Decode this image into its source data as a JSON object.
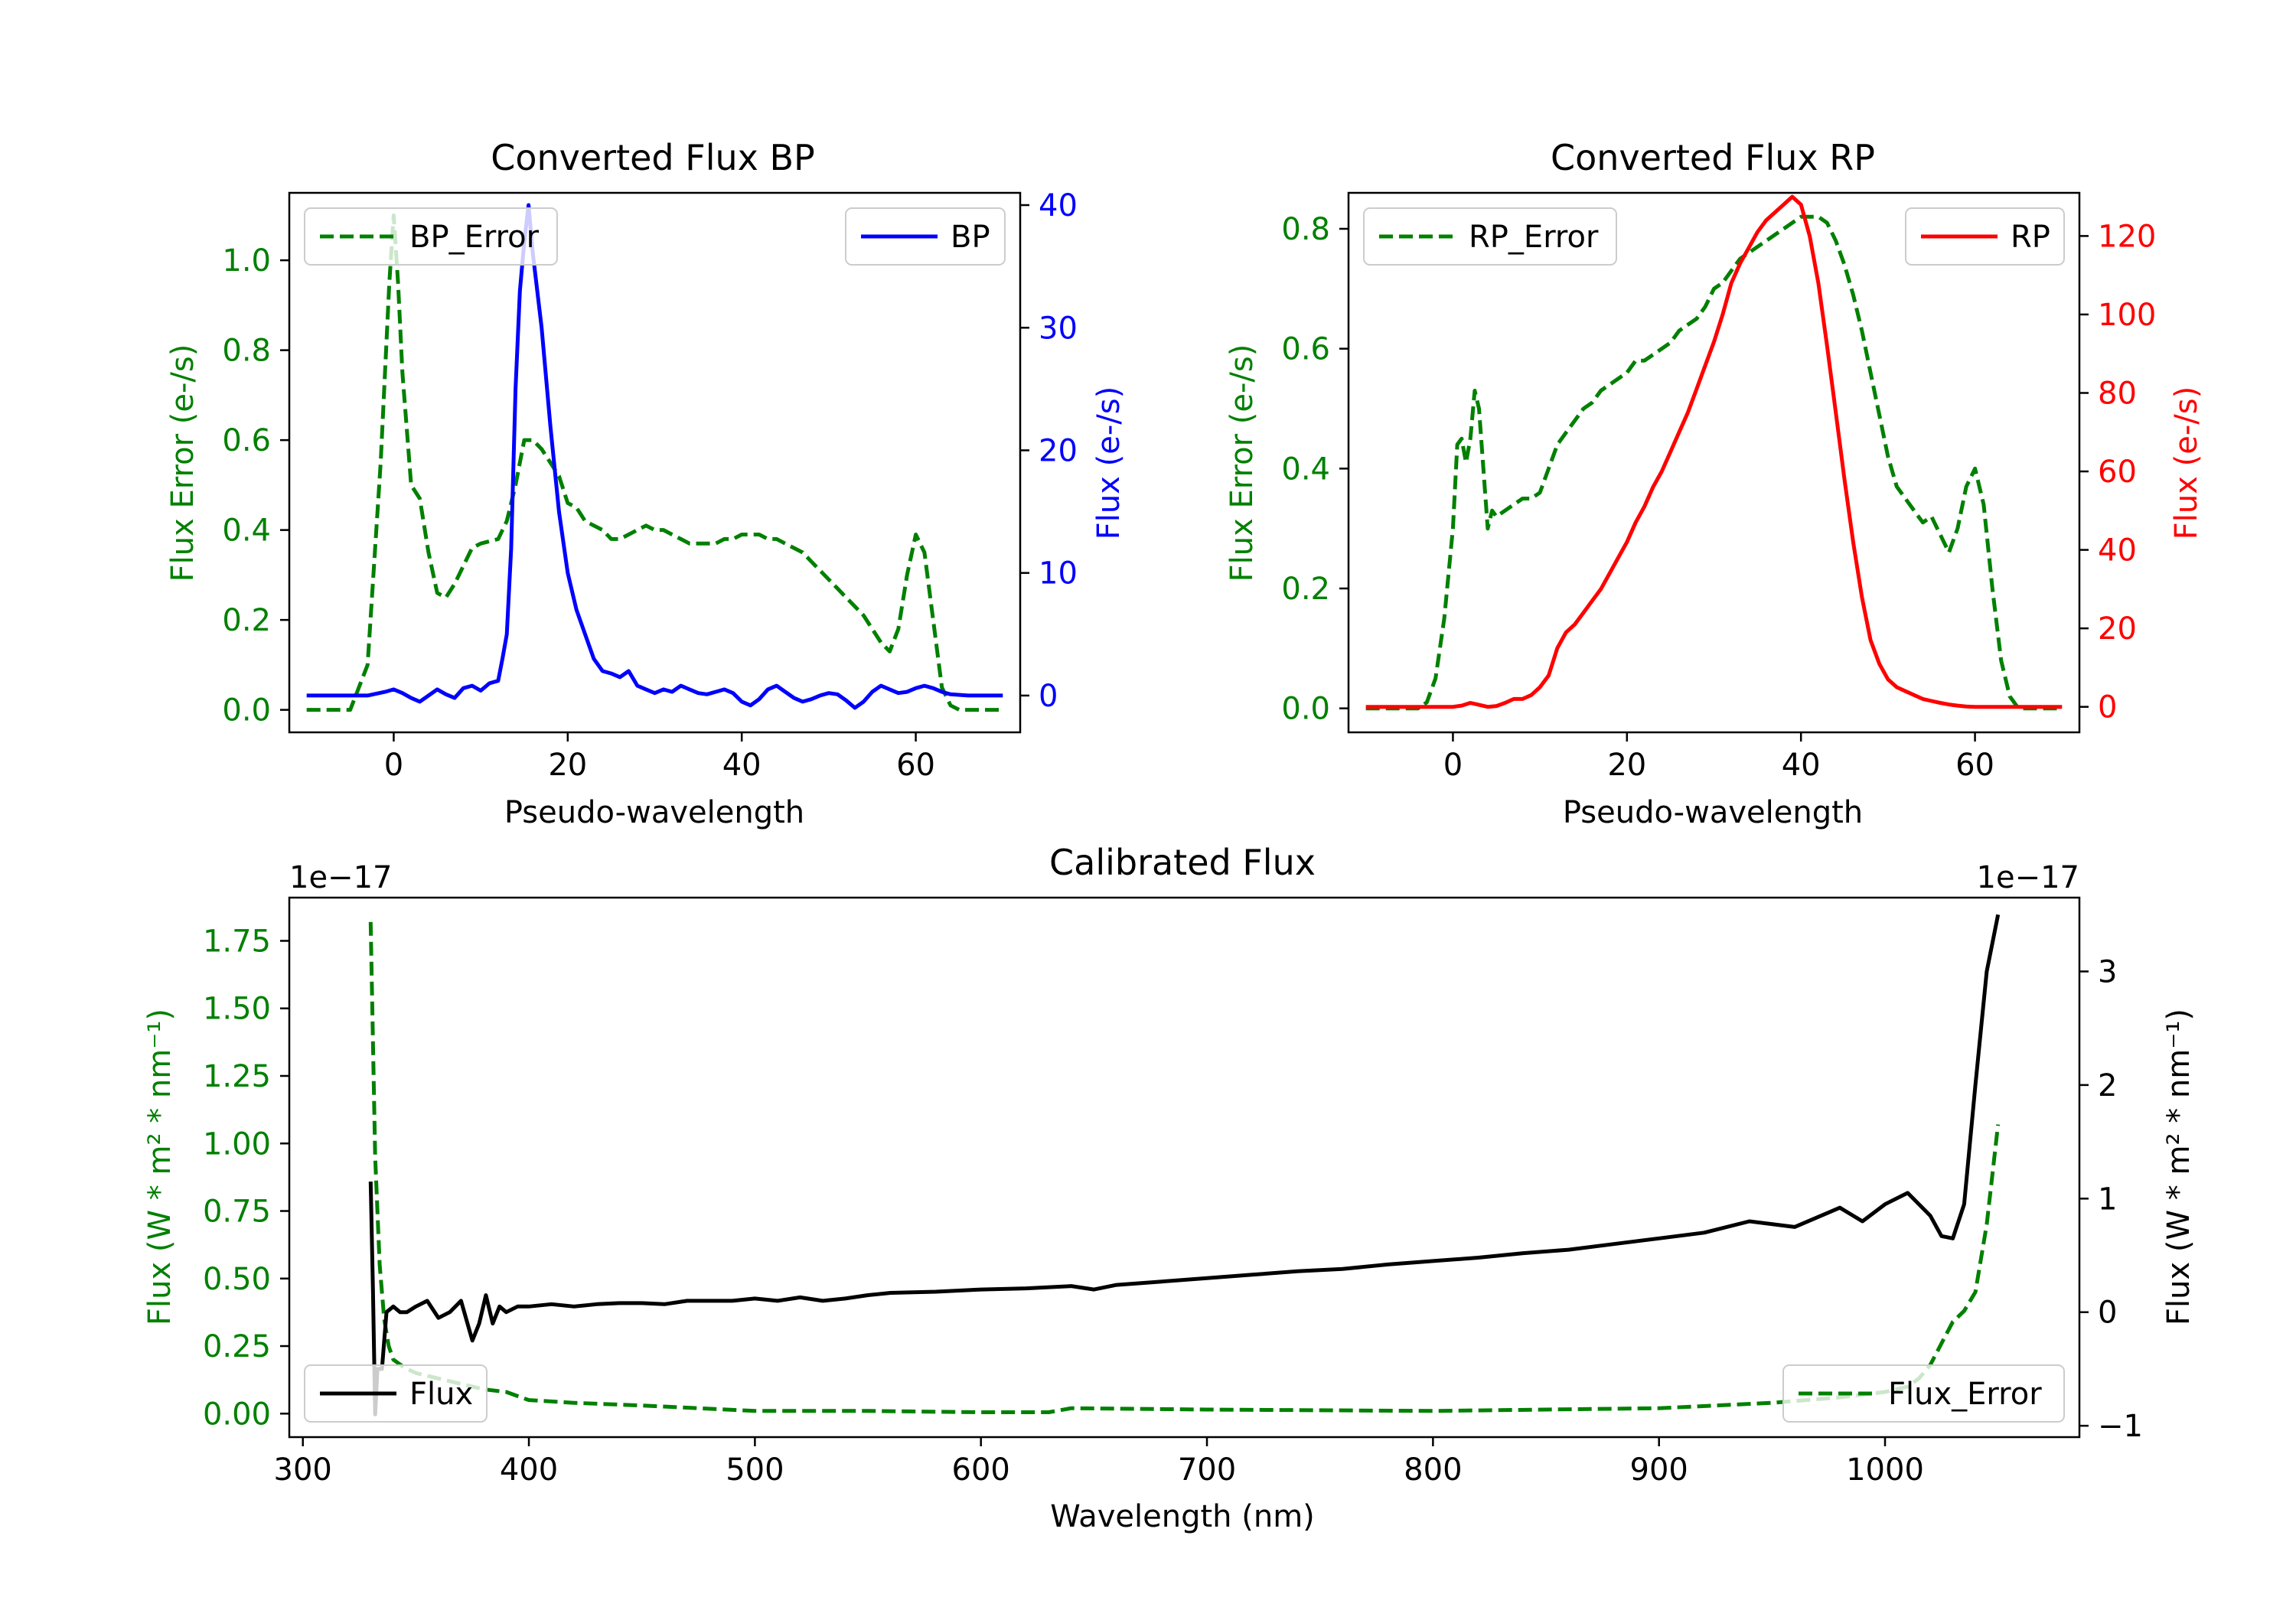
{
  "colors": {
    "error": "#008000",
    "bp": "#0000ff",
    "rp": "#ff0000",
    "flux": "#000000",
    "axis": "#000000"
  },
  "chart_data": [
    {
      "id": "bp",
      "type": "line",
      "title": "Converted Flux BP",
      "xlabel": "Pseudo-wavelength",
      "ylabel_left": "Flux Error (e-/s)",
      "ylabel_right": "Flux (e-/s)",
      "xlim": [
        -12,
        72
      ],
      "ylim_left": [
        -0.05,
        1.15
      ],
      "ylim_right": [
        -3,
        41
      ],
      "xticks": [
        0,
        20,
        40,
        60
      ],
      "xtick_labels": [
        "0",
        "20",
        "40",
        "60"
      ],
      "yticks_left": [
        0.0,
        0.2,
        0.4,
        0.6,
        0.8,
        1.0
      ],
      "ytick_labels_left": [
        "0.0",
        "0.2",
        "0.4",
        "0.6",
        "0.8",
        "1.0"
      ],
      "yticks_right": [
        0,
        10,
        20,
        30,
        40
      ],
      "ytick_labels_right": [
        "0",
        "10",
        "20",
        "30",
        "40"
      ],
      "legend_left": {
        "label": "BP_Error",
        "position": "upper-left"
      },
      "legend_right": {
        "label": "BP",
        "position": "upper-right"
      },
      "series": [
        {
          "name": "BP_Error",
          "axis": "left",
          "style": "dashed",
          "color": "#008000",
          "x": [
            -10,
            -5,
            -3,
            -1.5,
            -0.5,
            0,
            0.5,
            1,
            2,
            3,
            4,
            5,
            6,
            7,
            8,
            9,
            10,
            12,
            13,
            14,
            15,
            16,
            17,
            18,
            19,
            20,
            21,
            22,
            23,
            24,
            25,
            26,
            27,
            28,
            29,
            30,
            31,
            32,
            33,
            34,
            35,
            36,
            37,
            38,
            39,
            40,
            41,
            42,
            43,
            44,
            45,
            46,
            47,
            48,
            49,
            50,
            51,
            52,
            53,
            54,
            55,
            56,
            57,
            58,
            59,
            60,
            61,
            62,
            63,
            64,
            65,
            66,
            67,
            68,
            69,
            70
          ],
          "y": [
            0.0,
            0.0,
            0.1,
            0.55,
            0.95,
            1.1,
            0.95,
            0.75,
            0.5,
            0.47,
            0.35,
            0.26,
            0.25,
            0.28,
            0.32,
            0.36,
            0.37,
            0.38,
            0.42,
            0.5,
            0.6,
            0.6,
            0.58,
            0.55,
            0.52,
            0.46,
            0.45,
            0.42,
            0.41,
            0.4,
            0.38,
            0.38,
            0.39,
            0.4,
            0.41,
            0.4,
            0.4,
            0.39,
            0.38,
            0.37,
            0.37,
            0.37,
            0.37,
            0.38,
            0.38,
            0.39,
            0.39,
            0.39,
            0.38,
            0.38,
            0.37,
            0.36,
            0.35,
            0.33,
            0.31,
            0.29,
            0.27,
            0.25,
            0.23,
            0.21,
            0.18,
            0.15,
            0.13,
            0.18,
            0.3,
            0.39,
            0.35,
            0.2,
            0.05,
            0.01,
            0.0,
            0.0,
            0.0,
            0.0,
            0.0,
            0.0
          ]
        },
        {
          "name": "BP",
          "axis": "right",
          "style": "solid",
          "color": "#0000ff",
          "x": [
            -10,
            -5,
            -3,
            -1,
            0,
            1,
            2,
            3,
            4,
            5,
            6,
            7,
            8,
            9,
            10,
            11,
            12,
            12.5,
            13,
            13.5,
            14,
            14.5,
            15,
            15.5,
            16,
            17,
            18,
            19,
            20,
            21,
            22,
            23,
            24,
            25,
            26,
            27,
            28,
            29,
            30,
            31,
            32,
            33,
            34,
            35,
            36,
            37,
            38,
            39,
            40,
            41,
            42,
            43,
            44,
            45,
            46,
            47,
            48,
            49,
            50,
            51,
            52,
            53,
            54,
            55,
            56,
            57,
            58,
            59,
            60,
            61,
            62,
            63,
            64,
            66,
            68,
            70
          ],
          "y": [
            0,
            0,
            0,
            0.3,
            0.5,
            0.2,
            -0.2,
            -0.5,
            0,
            0.5,
            0.1,
            -0.2,
            0.6,
            0.8,
            0.4,
            1.0,
            1.2,
            3,
            5,
            12,
            25,
            33,
            37,
            40,
            36,
            30,
            22,
            15,
            10,
            7,
            5,
            3,
            2,
            1.8,
            1.5,
            2,
            0.8,
            0.5,
            0.2,
            0.5,
            0.3,
            0.8,
            0.5,
            0.2,
            0.1,
            0.3,
            0.5,
            0.2,
            -0.5,
            -0.8,
            -0.3,
            0.5,
            0.8,
            0.3,
            -0.2,
            -0.5,
            -0.3,
            0,
            0.2,
            0.1,
            -0.4,
            -1.0,
            -0.5,
            0.3,
            0.8,
            0.5,
            0.2,
            0.3,
            0.6,
            0.8,
            0.6,
            0.3,
            0.1,
            0,
            0,
            0
          ]
        }
      ]
    },
    {
      "id": "rp",
      "type": "line",
      "title": "Converted Flux RP",
      "xlabel": "Pseudo-wavelength",
      "ylabel_left": "Flux Error (e-/s)",
      "ylabel_right": "Flux (e-/s)",
      "xlim": [
        -12,
        72
      ],
      "ylim_left": [
        -0.04,
        0.86
      ],
      "ylim_right": [
        -6.5,
        131
      ],
      "xticks": [
        0,
        20,
        40,
        60
      ],
      "xtick_labels": [
        "0",
        "20",
        "40",
        "60"
      ],
      "yticks_left": [
        0.0,
        0.2,
        0.4,
        0.6,
        0.8
      ],
      "ytick_labels_left": [
        "0.0",
        "0.2",
        "0.4",
        "0.6",
        "0.8"
      ],
      "yticks_right": [
        0,
        20,
        40,
        60,
        80,
        100,
        120
      ],
      "ytick_labels_right": [
        "0",
        "20",
        "40",
        "60",
        "80",
        "100",
        "120"
      ],
      "legend_left": {
        "label": "RP_Error",
        "position": "upper-left"
      },
      "legend_right": {
        "label": "RP",
        "position": "upper-right"
      },
      "series": [
        {
          "name": "RP_Error",
          "axis": "left",
          "style": "dashed",
          "color": "#008000",
          "x": [
            -10,
            -5,
            -4,
            -3,
            -2,
            -1,
            0,
            0.5,
            1,
            1.5,
            2,
            2.5,
            3,
            3.5,
            4,
            4.5,
            5,
            6,
            7,
            8,
            9,
            10,
            11,
            12,
            13,
            14,
            15,
            16,
            17,
            18,
            19,
            20,
            21,
            22,
            23,
            24,
            25,
            26,
            27,
            28,
            29,
            30,
            31,
            32,
            33,
            34,
            35,
            36,
            37,
            38,
            39,
            40,
            41,
            42,
            43,
            44,
            45,
            46,
            47,
            48,
            49,
            50,
            51,
            52,
            53,
            54,
            55,
            56,
            57,
            58,
            59,
            60,
            61,
            62,
            63,
            64,
            65,
            66,
            67,
            68,
            69,
            70
          ],
          "y": [
            0.0,
            0.0,
            0.0,
            0.01,
            0.05,
            0.15,
            0.3,
            0.44,
            0.45,
            0.41,
            0.45,
            0.53,
            0.5,
            0.4,
            0.3,
            0.33,
            0.32,
            0.33,
            0.34,
            0.35,
            0.35,
            0.36,
            0.4,
            0.44,
            0.46,
            0.48,
            0.5,
            0.51,
            0.53,
            0.54,
            0.55,
            0.56,
            0.58,
            0.58,
            0.59,
            0.6,
            0.61,
            0.63,
            0.64,
            0.65,
            0.67,
            0.7,
            0.71,
            0.73,
            0.75,
            0.76,
            0.77,
            0.78,
            0.79,
            0.8,
            0.81,
            0.82,
            0.82,
            0.82,
            0.81,
            0.78,
            0.74,
            0.69,
            0.63,
            0.56,
            0.49,
            0.42,
            0.37,
            0.35,
            0.33,
            0.31,
            0.32,
            0.29,
            0.26,
            0.3,
            0.37,
            0.4,
            0.34,
            0.2,
            0.08,
            0.02,
            0.0,
            0.0,
            0.0,
            0.0,
            0.0,
            0.0
          ]
        },
        {
          "name": "RP",
          "axis": "right",
          "style": "solid",
          "color": "#ff0000",
          "x": [
            -10,
            -5,
            0,
            1,
            2,
            3,
            4,
            5,
            6,
            7,
            8,
            9,
            10,
            11,
            12,
            13,
            14,
            15,
            16,
            17,
            18,
            19,
            20,
            21,
            22,
            23,
            24,
            25,
            26,
            27,
            28,
            29,
            30,
            31,
            32,
            33,
            34,
            35,
            36,
            37,
            38,
            39,
            40,
            41,
            42,
            43,
            44,
            45,
            46,
            47,
            48,
            49,
            50,
            51,
            52,
            53,
            54,
            55,
            56,
            57,
            58,
            59,
            60,
            62,
            65,
            70
          ],
          "y": [
            0,
            0,
            0,
            0.3,
            1.0,
            0.5,
            0.0,
            0.2,
            1.0,
            2.0,
            2.0,
            3.0,
            5.0,
            8.0,
            15,
            19,
            21,
            24,
            27,
            30,
            34,
            38,
            42,
            47,
            51,
            56,
            60,
            65,
            70,
            75,
            81,
            87,
            93,
            100,
            108,
            113,
            117,
            121,
            124,
            126,
            128,
            130,
            128,
            120,
            108,
            92,
            75,
            58,
            42,
            28,
            17,
            11,
            7,
            5,
            4,
            3,
            2,
            1.5,
            1.0,
            0.6,
            0.3,
            0.1,
            0,
            0,
            0,
            0
          ]
        }
      ]
    },
    {
      "id": "cal",
      "type": "line",
      "title": "Calibrated Flux",
      "xlabel": "Wavelength (nm)",
      "ylabel_left": "Flux (W * m² * nm⁻¹)",
      "ylabel_right": "Flux (W * m² * nm⁻¹)",
      "offset_left": "1e−17",
      "offset_right": "1e−17",
      "xlim": [
        294,
        1086
      ],
      "ylim_left": [
        -0.087,
        1.91
      ],
      "ylim_right": [
        -1.1,
        3.65
      ],
      "xticks": [
        300,
        400,
        500,
        600,
        700,
        800,
        900,
        1000
      ],
      "xtick_labels": [
        "300",
        "400",
        "500",
        "600",
        "700",
        "800",
        "900",
        "1000"
      ],
      "yticks_left": [
        0.0,
        0.25,
        0.5,
        0.75,
        1.0,
        1.25,
        1.5,
        1.75
      ],
      "ytick_labels_left": [
        "0.00",
        "0.25",
        "0.50",
        "0.75",
        "1.00",
        "1.25",
        "1.50",
        "1.75"
      ],
      "yticks_right": [
        -1,
        0,
        1,
        2,
        3
      ],
      "ytick_labels_right": [
        "−1",
        "0",
        "1",
        "2",
        "3"
      ],
      "legend_left": {
        "label": "Flux",
        "position": "lower-left"
      },
      "legend_right": {
        "label": "Flux_Error",
        "position": "lower-right"
      },
      "series": [
        {
          "name": "Flux_Error",
          "axis": "left",
          "style": "dashed",
          "color": "#008000",
          "x": [
            330,
            332,
            334,
            336,
            338,
            340,
            345,
            350,
            360,
            370,
            380,
            390,
            400,
            420,
            450,
            500,
            550,
            600,
            630,
            640,
            700,
            800,
            900,
            950,
            980,
            1000,
            1010,
            1015,
            1020,
            1025,
            1030,
            1035,
            1040,
            1045,
            1050
          ],
          "y": [
            1.82,
            0.95,
            0.55,
            0.35,
            0.25,
            0.2,
            0.17,
            0.15,
            0.13,
            0.11,
            0.09,
            0.08,
            0.05,
            0.04,
            0.03,
            0.01,
            0.01,
            0.005,
            0.005,
            0.02,
            0.015,
            0.01,
            0.02,
            0.04,
            0.06,
            0.08,
            0.1,
            0.13,
            0.18,
            0.26,
            0.34,
            0.38,
            0.45,
            0.7,
            1.07
          ]
        },
        {
          "name": "Flux",
          "axis": "right",
          "style": "solid",
          "color": "#000000",
          "x": [
            330,
            331,
            332,
            333,
            335,
            337,
            340,
            343,
            346,
            350,
            355,
            360,
            365,
            370,
            375,
            378,
            381,
            384,
            387,
            390,
            395,
            400,
            410,
            420,
            430,
            440,
            450,
            460,
            470,
            480,
            490,
            500,
            510,
            520,
            530,
            540,
            550,
            560,
            580,
            600,
            620,
            640,
            650,
            660,
            680,
            700,
            720,
            740,
            760,
            780,
            800,
            820,
            840,
            860,
            880,
            900,
            920,
            940,
            960,
            980,
            990,
            1000,
            1010,
            1020,
            1025,
            1030,
            1035,
            1040,
            1045,
            1050
          ],
          "y": [
            1.15,
            0.2,
            -0.9,
            -0.5,
            -0.5,
            0.0,
            0.05,
            0.0,
            0.0,
            0.05,
            0.1,
            -0.05,
            0.0,
            0.1,
            -0.25,
            -0.1,
            0.15,
            -0.1,
            0.05,
            0.0,
            0.05,
            0.05,
            0.07,
            0.05,
            0.07,
            0.08,
            0.08,
            0.07,
            0.1,
            0.1,
            0.1,
            0.12,
            0.1,
            0.13,
            0.1,
            0.12,
            0.15,
            0.17,
            0.18,
            0.2,
            0.21,
            0.23,
            0.2,
            0.24,
            0.27,
            0.3,
            0.33,
            0.36,
            0.38,
            0.42,
            0.45,
            0.48,
            0.52,
            0.55,
            0.6,
            0.65,
            0.7,
            0.8,
            0.75,
            0.92,
            0.8,
            0.95,
            1.05,
            0.85,
            0.67,
            0.65,
            0.95,
            2.0,
            3.0,
            3.5
          ]
        }
      ]
    }
  ]
}
